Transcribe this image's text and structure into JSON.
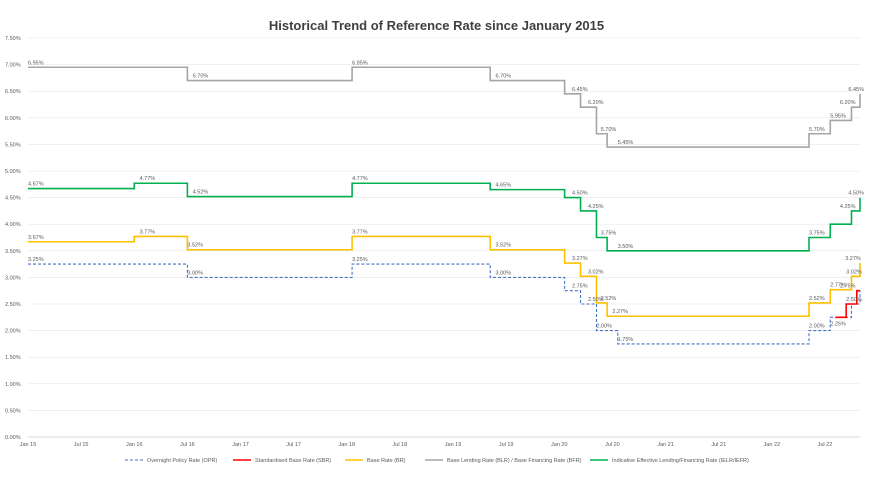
{
  "chart_data": {
    "type": "line",
    "title": "Historical Trend of Reference Rate since January 2015",
    "xlabel": "",
    "ylabel": "",
    "ylim": [
      0,
      7.5
    ],
    "y_ticks": [
      "0.00%",
      "0.50%",
      "1.00%",
      "1.50%",
      "2.00%",
      "2.50%",
      "3.00%",
      "3.50%",
      "4.00%",
      "4.50%",
      "5.00%",
      "5.50%",
      "6.00%",
      "6.50%",
      "7.00%",
      "7.50%"
    ],
    "x_range": [
      2015.0,
      2022.83
    ],
    "x_ticks": [
      {
        "label": "Jan 15",
        "x": 2015.0
      },
      {
        "label": "Jul 15",
        "x": 2015.5
      },
      {
        "label": "Jan 16",
        "x": 2016.0
      },
      {
        "label": "Jul 16",
        "x": 2016.5
      },
      {
        "label": "Jan 17",
        "x": 2017.0
      },
      {
        "label": "Jul 17",
        "x": 2017.5
      },
      {
        "label": "Jan 18",
        "x": 2018.0
      },
      {
        "label": "Jul 18",
        "x": 2018.5
      },
      {
        "label": "Jan 19",
        "x": 2019.0
      },
      {
        "label": "Jul 19",
        "x": 2019.5
      },
      {
        "label": "Jan 20",
        "x": 2020.0
      },
      {
        "label": "Jul 20",
        "x": 2020.5
      },
      {
        "label": "Jan 21",
        "x": 2021.0
      },
      {
        "label": "Jul 21",
        "x": 2021.5
      },
      {
        "label": "Jan 22",
        "x": 2022.0
      },
      {
        "label": "Jul 22",
        "x": 2022.5
      }
    ],
    "series": [
      {
        "name": "Overnight Policy Rate (OPR)",
        "color": "#4472c4",
        "style": "dashed",
        "points": [
          [
            2015.0,
            3.25
          ],
          [
            2016.5,
            3.0
          ],
          [
            2018.05,
            3.25
          ],
          [
            2019.35,
            3.0
          ],
          [
            2020.05,
            2.75
          ],
          [
            2020.2,
            2.5
          ],
          [
            2020.35,
            2.0
          ],
          [
            2020.55,
            1.75
          ],
          [
            2022.35,
            2.0
          ],
          [
            2022.55,
            2.25
          ],
          [
            2022.75,
            2.5
          ],
          [
            2022.83,
            2.75
          ]
        ],
        "labels": [
          {
            "x": 2015.0,
            "y": 3.25,
            "text": "3.25%",
            "pos": "above"
          },
          {
            "x": 2016.5,
            "y": 3.0,
            "text": "3.00%",
            "pos": "above"
          },
          {
            "x": 2018.05,
            "y": 3.25,
            "text": "3.25%",
            "pos": "above"
          },
          {
            "x": 2019.4,
            "y": 3.0,
            "text": "3.00%",
            "pos": "above"
          },
          {
            "x": 2020.12,
            "y": 2.75,
            "text": "2.75%",
            "pos": "above"
          },
          {
            "x": 2020.27,
            "y": 2.5,
            "text": "2.50%",
            "pos": "above"
          },
          {
            "x": 2020.35,
            "y": 2.0,
            "text": "2.00%",
            "pos": "above"
          },
          {
            "x": 2020.55,
            "y": 1.75,
            "text": "1.75%",
            "pos": "above"
          },
          {
            "x": 2022.35,
            "y": 2.0,
            "text": "2.00%",
            "pos": "above"
          },
          {
            "x": 2022.55,
            "y": 2.25,
            "text": "2.25%",
            "pos": "below"
          },
          {
            "x": 2022.75,
            "y": 2.75,
            "text": "2.75%",
            "pos": "above"
          }
        ]
      },
      {
        "name": "Standardised Base Rate (SBR)",
        "color": "#ff0000",
        "style": "solid",
        "points": [
          [
            2022.6,
            2.25
          ],
          [
            2022.7,
            2.25
          ],
          [
            2022.7,
            2.5
          ],
          [
            2022.8,
            2.5
          ],
          [
            2022.8,
            2.75
          ],
          [
            2022.83,
            2.75
          ]
        ],
        "labels": [
          {
            "x": 2022.7,
            "y": 2.5,
            "text": "2.50%",
            "pos": "above"
          }
        ]
      },
      {
        "name": "Base Rate (BR)",
        "color": "#ffc000",
        "style": "solid",
        "points": [
          [
            2015.0,
            3.67
          ],
          [
            2016.0,
            3.77
          ],
          [
            2016.5,
            3.52
          ],
          [
            2018.05,
            3.77
          ],
          [
            2019.35,
            3.52
          ],
          [
            2020.05,
            3.27
          ],
          [
            2020.2,
            3.02
          ],
          [
            2020.35,
            2.52
          ],
          [
            2020.45,
            2.27
          ],
          [
            2022.35,
            2.52
          ],
          [
            2022.55,
            2.77
          ],
          [
            2022.75,
            3.02
          ],
          [
            2022.83,
            3.27
          ]
        ],
        "labels": [
          {
            "x": 2015.0,
            "y": 3.67,
            "text": "3.67%",
            "pos": "above"
          },
          {
            "x": 2016.05,
            "y": 3.77,
            "text": "3.77%",
            "pos": "above"
          },
          {
            "x": 2016.5,
            "y": 3.52,
            "text": "3.52%",
            "pos": "above"
          },
          {
            "x": 2018.05,
            "y": 3.77,
            "text": "3.77%",
            "pos": "above"
          },
          {
            "x": 2019.4,
            "y": 3.52,
            "text": "3.52%",
            "pos": "above"
          },
          {
            "x": 2020.12,
            "y": 3.27,
            "text": "3.27%",
            "pos": "above"
          },
          {
            "x": 2020.27,
            "y": 3.02,
            "text": "3.02%",
            "pos": "above"
          },
          {
            "x": 2020.39,
            "y": 2.52,
            "text": "2.52%",
            "pos": "above"
          },
          {
            "x": 2020.5,
            "y": 2.27,
            "text": "2.27%",
            "pos": "above"
          },
          {
            "x": 2022.35,
            "y": 2.52,
            "text": "2.52%",
            "pos": "above"
          },
          {
            "x": 2022.55,
            "y": 2.77,
            "text": "2.77%",
            "pos": "above"
          },
          {
            "x": 2022.7,
            "y": 3.02,
            "text": "3.02%",
            "pos": "above"
          },
          {
            "x": 2022.8,
            "y": 3.27,
            "text": "3.27%",
            "pos": "above"
          }
        ]
      },
      {
        "name": "Base Lending Rate (BLR) / Base Financing Rate (BFR)",
        "color": "#a5a5a5",
        "style": "solid",
        "points": [
          [
            2015.0,
            6.95
          ],
          [
            2016.5,
            6.7
          ],
          [
            2018.05,
            6.95
          ],
          [
            2019.35,
            6.7
          ],
          [
            2020.05,
            6.45
          ],
          [
            2020.2,
            6.2
          ],
          [
            2020.35,
            5.7
          ],
          [
            2020.45,
            5.45
          ],
          [
            2022.35,
            5.7
          ],
          [
            2022.55,
            5.95
          ],
          [
            2022.75,
            6.2
          ],
          [
            2022.83,
            6.45
          ]
        ],
        "labels": [
          {
            "x": 2015.0,
            "y": 6.95,
            "text": "6.95%",
            "pos": "above"
          },
          {
            "x": 2016.55,
            "y": 6.7,
            "text": "6.70%",
            "pos": "above"
          },
          {
            "x": 2018.05,
            "y": 6.95,
            "text": "6.95%",
            "pos": "above"
          },
          {
            "x": 2019.4,
            "y": 6.7,
            "text": "6.70%",
            "pos": "above"
          },
          {
            "x": 2020.12,
            "y": 6.45,
            "text": "6.45%",
            "pos": "above"
          },
          {
            "x": 2020.27,
            "y": 6.2,
            "text": "6.20%",
            "pos": "above"
          },
          {
            "x": 2020.39,
            "y": 5.7,
            "text": "5.70%",
            "pos": "above"
          },
          {
            "x": 2020.55,
            "y": 5.45,
            "text": "5.45%",
            "pos": "above"
          },
          {
            "x": 2022.35,
            "y": 5.7,
            "text": "5.70%",
            "pos": "above"
          },
          {
            "x": 2022.55,
            "y": 5.95,
            "text": "5.95%",
            "pos": "above"
          },
          {
            "x": 2022.75,
            "y": 6.2,
            "text": "6.20%",
            "pos": "above"
          },
          {
            "x": 2022.83,
            "y": 6.45,
            "text": "6.45%",
            "pos": "above"
          }
        ]
      },
      {
        "name": "Indicative Effective Lending/Financing Rate (IELR/IEFR)",
        "color": "#00b050",
        "style": "solid",
        "points": [
          [
            2015.0,
            4.67
          ],
          [
            2016.0,
            4.77
          ],
          [
            2016.5,
            4.52
          ],
          [
            2018.05,
            4.77
          ],
          [
            2019.35,
            4.65
          ],
          [
            2020.05,
            4.5
          ],
          [
            2020.2,
            4.25
          ],
          [
            2020.35,
            3.75
          ],
          [
            2020.45,
            3.5
          ],
          [
            2022.35,
            3.75
          ],
          [
            2022.55,
            4.0
          ],
          [
            2022.75,
            4.25
          ],
          [
            2022.83,
            4.5
          ]
        ],
        "labels": [
          {
            "x": 2015.0,
            "y": 4.67,
            "text": "4.67%",
            "pos": "above"
          },
          {
            "x": 2016.05,
            "y": 4.77,
            "text": "4.77%",
            "pos": "above"
          },
          {
            "x": 2016.55,
            "y": 4.52,
            "text": "4.52%",
            "pos": "above"
          },
          {
            "x": 2018.05,
            "y": 4.77,
            "text": "4.77%",
            "pos": "above"
          },
          {
            "x": 2019.4,
            "y": 4.65,
            "text": "4.65%",
            "pos": "above"
          },
          {
            "x": 2020.12,
            "y": 4.5,
            "text": "4.50%",
            "pos": "above"
          },
          {
            "x": 2020.27,
            "y": 4.25,
            "text": "4.25%",
            "pos": "above"
          },
          {
            "x": 2020.39,
            "y": 3.75,
            "text": "3.75%",
            "pos": "above"
          },
          {
            "x": 2020.55,
            "y": 3.5,
            "text": "3.50%",
            "pos": "above"
          },
          {
            "x": 2022.35,
            "y": 3.75,
            "text": "3.75%",
            "pos": "above"
          },
          {
            "x": 2022.75,
            "y": 4.25,
            "text": "4.25%",
            "pos": "above"
          },
          {
            "x": 2022.83,
            "y": 4.5,
            "text": "4.50%",
            "pos": "above"
          }
        ]
      }
    ],
    "legend_position": "bottom"
  }
}
